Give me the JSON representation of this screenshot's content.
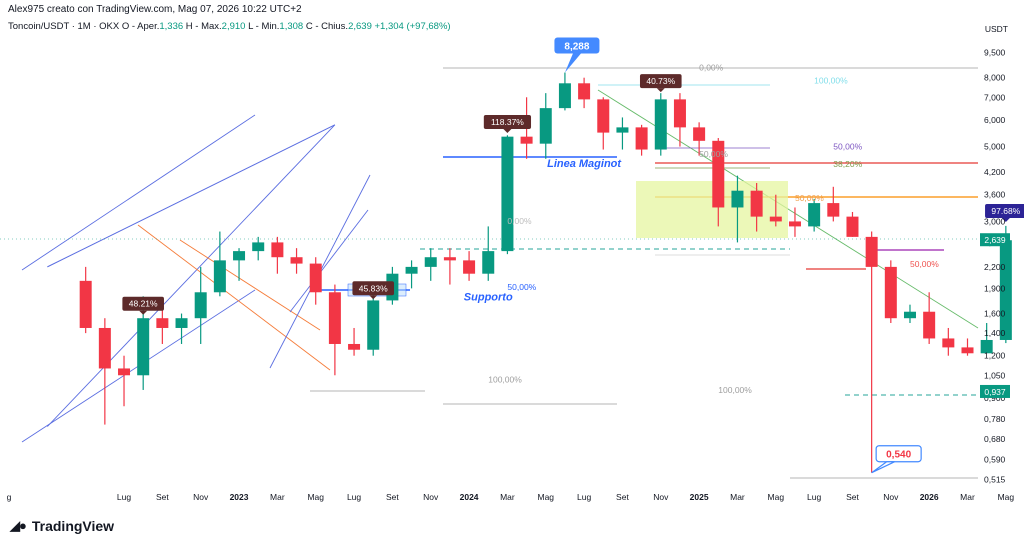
{
  "header": {
    "author_line": "Alex975 creato con TradingView.com, Mag 07, 2026 10:22 UTC+2",
    "symbol": "Toncoin/USDT · 1M · OKX",
    "open_label": "O - Aper.",
    "open": "1,336",
    "high_label": "H - Max.",
    "high": "2,910",
    "low_label": "L - Min.",
    "low": "1,308",
    "close_label": "C - Chius.",
    "close": "2,639",
    "change": "+1,304 (+97,68%)"
  },
  "brand": {
    "name": "TradingView",
    "logo_icon": "tradingview-logo-icon"
  },
  "chart_data": {
    "type": "candlestick",
    "scale": "log",
    "currency": "USDT",
    "y_ticks": [
      "9,500",
      "8,000",
      "7,000",
      "6,000",
      "5,000",
      "4,200",
      "3,600",
      "3,000",
      "2,600",
      "2,200",
      "1,900",
      "1,600",
      "1,400",
      "1,200",
      "1,050",
      "0,900",
      "0,780",
      "0,680",
      "0,590",
      "0,515"
    ],
    "x_ticks": [
      {
        "label": "g",
        "date": "2022-01"
      },
      {
        "label": "Lug",
        "date": "2022-07"
      },
      {
        "label": "Set",
        "date": "2022-09"
      },
      {
        "label": "Nov",
        "date": "2022-11"
      },
      {
        "label": "2023",
        "date": "2023-01"
      },
      {
        "label": "Mar",
        "date": "2023-03"
      },
      {
        "label": "Mag",
        "date": "2023-05"
      },
      {
        "label": "Lug",
        "date": "2023-07"
      },
      {
        "label": "Set",
        "date": "2023-09"
      },
      {
        "label": "Nov",
        "date": "2023-11"
      },
      {
        "label": "2024",
        "date": "2024-01"
      },
      {
        "label": "Mar",
        "date": "2024-03"
      },
      {
        "label": "Mag",
        "date": "2024-05"
      },
      {
        "label": "Lug",
        "date": "2024-07"
      },
      {
        "label": "Set",
        "date": "2024-09"
      },
      {
        "label": "Nov",
        "date": "2024-11"
      },
      {
        "label": "2025",
        "date": "2025-01"
      },
      {
        "label": "Mar",
        "date": "2025-03"
      },
      {
        "label": "Mag",
        "date": "2025-05"
      },
      {
        "label": "Lug",
        "date": "2025-07"
      },
      {
        "label": "Set",
        "date": "2025-09"
      },
      {
        "label": "Nov",
        "date": "2025-11"
      },
      {
        "label": "2026",
        "date": "2026-01"
      },
      {
        "label": "Mar",
        "date": "2026-03"
      },
      {
        "label": "Mag",
        "date": "2026-05"
      },
      {
        "label": "Lug",
        "date": "2026-07"
      }
    ],
    "candles": [
      {
        "date": "2022-05",
        "o": 2.0,
        "h": 2.2,
        "l": 1.4,
        "c": 1.45
      },
      {
        "date": "2022-06",
        "o": 1.45,
        "h": 1.55,
        "l": 0.75,
        "c": 1.1
      },
      {
        "date": "2022-07",
        "o": 1.1,
        "h": 1.2,
        "l": 0.85,
        "c": 1.05
      },
      {
        "date": "2022-08",
        "o": 1.05,
        "h": 1.8,
        "l": 0.95,
        "c": 1.55
      },
      {
        "date": "2022-09",
        "o": 1.55,
        "h": 1.75,
        "l": 1.3,
        "c": 1.45
      },
      {
        "date": "2022-10",
        "o": 1.45,
        "h": 1.6,
        "l": 1.3,
        "c": 1.55
      },
      {
        "date": "2022-11",
        "o": 1.55,
        "h": 2.2,
        "l": 1.3,
        "c": 1.85
      },
      {
        "date": "2022-12",
        "o": 1.85,
        "h": 2.8,
        "l": 1.8,
        "c": 2.3
      },
      {
        "date": "2023-01",
        "o": 2.3,
        "h": 2.5,
        "l": 2.0,
        "c": 2.45
      },
      {
        "date": "2023-02",
        "o": 2.45,
        "h": 2.7,
        "l": 2.3,
        "c": 2.6
      },
      {
        "date": "2023-03",
        "o": 2.6,
        "h": 2.7,
        "l": 2.1,
        "c": 2.35
      },
      {
        "date": "2023-04",
        "o": 2.35,
        "h": 2.5,
        "l": 2.1,
        "c": 2.25
      },
      {
        "date": "2023-05",
        "o": 2.25,
        "h": 2.35,
        "l": 1.7,
        "c": 1.85
      },
      {
        "date": "2023-06",
        "o": 1.85,
        "h": 1.95,
        "l": 1.05,
        "c": 1.3
      },
      {
        "date": "2023-07",
        "o": 1.3,
        "h": 1.45,
        "l": 1.2,
        "c": 1.25
      },
      {
        "date": "2023-08",
        "o": 1.25,
        "h": 1.9,
        "l": 1.2,
        "c": 1.75
      },
      {
        "date": "2023-09",
        "o": 1.75,
        "h": 2.2,
        "l": 1.7,
        "c": 2.1
      },
      {
        "date": "2023-10",
        "o": 2.1,
        "h": 2.3,
        "l": 1.9,
        "c": 2.2
      },
      {
        "date": "2023-11",
        "o": 2.2,
        "h": 2.5,
        "l": 2.0,
        "c": 2.35
      },
      {
        "date": "2023-12",
        "o": 2.35,
        "h": 2.5,
        "l": 1.95,
        "c": 2.3
      },
      {
        "date": "2024-01",
        "o": 2.3,
        "h": 2.45,
        "l": 2.0,
        "c": 2.1
      },
      {
        "date": "2024-02",
        "o": 2.1,
        "h": 2.9,
        "l": 2.0,
        "c": 2.45
      },
      {
        "date": "2024-03",
        "o": 2.45,
        "h": 5.4,
        "l": 2.4,
        "c": 5.35
      },
      {
        "date": "2024-04",
        "o": 5.35,
        "h": 7.0,
        "l": 4.6,
        "c": 5.1
      },
      {
        "date": "2024-05",
        "o": 5.1,
        "h": 7.2,
        "l": 4.6,
        "c": 6.5
      },
      {
        "date": "2024-06",
        "o": 6.5,
        "h": 8.288,
        "l": 6.4,
        "c": 7.7
      },
      {
        "date": "2024-07",
        "o": 7.7,
        "h": 8.0,
        "l": 6.5,
        "c": 6.9
      },
      {
        "date": "2024-08",
        "o": 6.9,
        "h": 7.0,
        "l": 4.9,
        "c": 5.5
      },
      {
        "date": "2024-09",
        "o": 5.5,
        "h": 6.1,
        "l": 4.9,
        "c": 5.7
      },
      {
        "date": "2024-10",
        "o": 5.7,
        "h": 5.8,
        "l": 4.7,
        "c": 4.9
      },
      {
        "date": "2024-11",
        "o": 4.9,
        "h": 7.2,
        "l": 4.7,
        "c": 6.9
      },
      {
        "date": "2024-12",
        "o": 6.9,
        "h": 7.2,
        "l": 5.0,
        "c": 5.7
      },
      {
        "date": "2025-01",
        "o": 5.7,
        "h": 5.9,
        "l": 4.7,
        "c": 5.2
      },
      {
        "date": "2025-02",
        "o": 5.2,
        "h": 5.3,
        "l": 2.9,
        "c": 3.3
      },
      {
        "date": "2025-03",
        "o": 3.3,
        "h": 4.1,
        "l": 2.6,
        "c": 3.7
      },
      {
        "date": "2025-04",
        "o": 3.7,
        "h": 3.9,
        "l": 2.8,
        "c": 3.1
      },
      {
        "date": "2025-05",
        "o": 3.1,
        "h": 3.6,
        "l": 2.9,
        "c": 3.0
      },
      {
        "date": "2025-06",
        "o": 3.0,
        "h": 3.3,
        "l": 2.7,
        "c": 2.9
      },
      {
        "date": "2025-07",
        "o": 2.9,
        "h": 3.5,
        "l": 2.8,
        "c": 3.4
      },
      {
        "date": "2025-08",
        "o": 3.4,
        "h": 3.8,
        "l": 3.0,
        "c": 3.1
      },
      {
        "date": "2025-09",
        "o": 3.1,
        "h": 3.2,
        "l": 2.7,
        "c": 2.7
      },
      {
        "date": "2025-10",
        "o": 2.7,
        "h": 2.8,
        "l": 0.54,
        "c": 2.2
      },
      {
        "date": "2025-11",
        "o": 2.2,
        "h": 2.3,
        "l": 1.5,
        "c": 1.55
      },
      {
        "date": "2025-12",
        "o": 1.55,
        "h": 1.7,
        "l": 1.5,
        "c": 1.62
      },
      {
        "date": "2026-01",
        "o": 1.62,
        "h": 1.85,
        "l": 1.3,
        "c": 1.35
      },
      {
        "date": "2026-02",
        "o": 1.35,
        "h": 1.45,
        "l": 1.2,
        "c": 1.27
      },
      {
        "date": "2026-03",
        "o": 1.27,
        "h": 1.35,
        "l": 1.2,
        "c": 1.22
      },
      {
        "date": "2026-04",
        "o": 1.22,
        "h": 1.5,
        "l": 1.22,
        "c": 1.336
      },
      {
        "date": "2026-05",
        "o": 1.336,
        "h": 2.91,
        "l": 1.308,
        "c": 2.639
      }
    ],
    "price_labels": {
      "last": "2,639",
      "level_0937": "0,937"
    },
    "callouts": [
      {
        "text": "8,288",
        "date": "2024-06",
        "price": 8.288,
        "kind": "high"
      },
      {
        "text": "0,540",
        "date": "2025-10",
        "price": 0.54,
        "kind": "low"
      }
    ],
    "pct_badges": [
      {
        "text": "48.21%",
        "date": "2022-08",
        "price": 1.62,
        "color": "#5d2a2a"
      },
      {
        "text": "45.83%",
        "date": "2023-08",
        "price": 1.8,
        "color": "#5d2a2a"
      },
      {
        "text": "118.37%",
        "date": "2024-03",
        "price": 5.6,
        "color": "#5d2a2a"
      },
      {
        "text": "40.73%",
        "date": "2024-11",
        "price": 7.4,
        "color": "#5d2a2a"
      },
      {
        "text": "97.68%",
        "date": "2026-05",
        "price": 3.05,
        "color": "#2c2396"
      }
    ],
    "annotations": [
      {
        "text": "Linea Maginot",
        "date": "2024-07",
        "price": 4.35,
        "color": "#2962ff"
      },
      {
        "text": "Supporto",
        "date": "2024-02",
        "price": 1.75,
        "color": "#2962ff"
      }
    ],
    "fib_labels": [
      {
        "text": "0,00%",
        "date": "2025-01",
        "price": 8.4,
        "color": "#9e9e9e"
      },
      {
        "text": "100,00%",
        "date": "2025-07",
        "price": 7.7,
        "color": "#80deea"
      },
      {
        "text": "50,00%",
        "date": "2025-08",
        "price": 4.9,
        "color": "#7e57c2"
      },
      {
        "text": "38,20%",
        "date": "2025-08",
        "price": 4.35,
        "color": "#7e9e4e"
      },
      {
        "text": "50,00%",
        "date": "2025-01",
        "price": 4.65,
        "color": "#9e9e9e"
      },
      {
        "text": "50,00%",
        "date": "2025-06",
        "price": 3.45,
        "color": "#f0a050"
      },
      {
        "text": "0,00%",
        "date": "2024-03",
        "price": 2.95,
        "color": "#bdbdbd"
      },
      {
        "text": "50,00%",
        "date": "2024-03",
        "price": 1.88,
        "color": "#2962ff"
      },
      {
        "text": "100,00%",
        "date": "2024-02",
        "price": 1.0,
        "color": "#9e9e9e"
      },
      {
        "text": "100,00%",
        "date": "2025-02",
        "price": 0.93,
        "color": "#9e9e9e"
      },
      {
        "text": "50,00%",
        "date": "2025-12",
        "price": 2.2,
        "color": "#ef5350"
      },
      {
        "text": "50,00%",
        "date": "2026-06",
        "price": 2.55,
        "color": "#ab47bc"
      }
    ]
  }
}
